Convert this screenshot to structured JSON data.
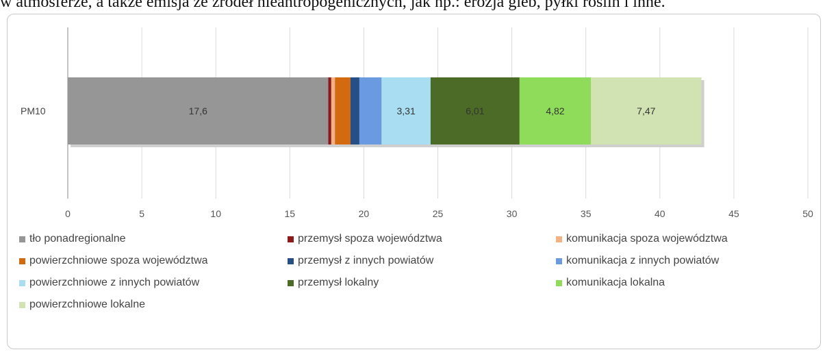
{
  "page": {
    "top_text": "w atmosferze, a także emisja ze źródeł nieantropogenicznych, jak np.: erozja gleb, pyłki roślin i inne."
  },
  "chart_data": {
    "type": "bar",
    "orientation": "horizontal",
    "stacked": true,
    "categories": [
      "PM10"
    ],
    "xlim": [
      0,
      50
    ],
    "xticks": [
      "0",
      "5",
      "10",
      "15",
      "20",
      "25",
      "30",
      "35",
      "40",
      "45",
      "50"
    ],
    "grid": true,
    "legend_position": "bottom",
    "series": [
      {
        "name": "tło ponadregionalne",
        "values": [
          17.6
        ],
        "label": "17,6",
        "color": "#969696"
      },
      {
        "name": "przemysł spoza województwa",
        "values": [
          0.2
        ],
        "label": "",
        "color": "#8b1a1a"
      },
      {
        "name": "komunikacja spoza województwa",
        "values": [
          0.25
        ],
        "label": "",
        "color": "#f4b183"
      },
      {
        "name": "powierzchniowe spoza województwa",
        "values": [
          1.05
        ],
        "label": "",
        "color": "#d46a0f"
      },
      {
        "name": "przemysł z innych powiatów",
        "values": [
          0.6
        ],
        "label": "",
        "color": "#254f85"
      },
      {
        "name": "komunikacja z innych powiatów",
        "values": [
          1.5
        ],
        "label": "",
        "color": "#6a9be0"
      },
      {
        "name": "powierzchniowe z innych powiatów",
        "values": [
          3.31
        ],
        "label": "3,31",
        "color": "#a9def2"
      },
      {
        "name": "przemysł lokalny",
        "values": [
          6.01
        ],
        "label": "6,01",
        "color": "#4b6b27"
      },
      {
        "name": "komunikacja lokalna",
        "values": [
          4.82
        ],
        "label": "4,82",
        "color": "#8fdc5a"
      },
      {
        "name": "powierzchniowe lokalne",
        "values": [
          7.47
        ],
        "label": "7,47",
        "color": "#d1e3b3"
      }
    ]
  }
}
